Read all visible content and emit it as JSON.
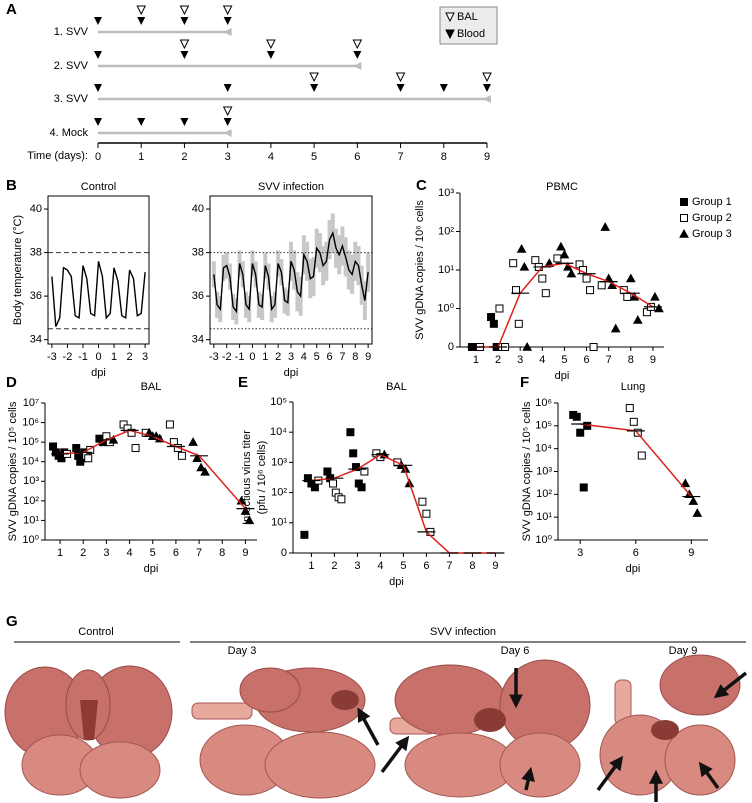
{
  "panel_labels": [
    "A",
    "B",
    "C",
    "D",
    "E",
    "F",
    "G"
  ],
  "photos": {
    "control_heading": "Control",
    "infection_heading": "SVV infection",
    "days": [
      "Day 3",
      "Day 6",
      "Day 9"
    ]
  },
  "chart_data": [
    {
      "type": "timeline",
      "xlabel": "Time (days):",
      "xlim": [
        0,
        9
      ],
      "xticks": [
        0,
        1,
        2,
        3,
        4,
        5,
        6,
        7,
        8,
        9
      ],
      "markers": [
        {
          "name": "BAL",
          "style": "open"
        },
        {
          "name": "Blood",
          "style": "filled"
        }
      ],
      "rows": [
        {
          "name": "1. SVV",
          "end": 3,
          "bal": [
            1,
            2,
            3
          ],
          "blood": [
            0,
            1,
            2,
            3
          ]
        },
        {
          "name": "2. SVV",
          "end": 6,
          "bal": [
            2,
            4,
            6
          ],
          "blood": [
            0,
            2,
            4,
            6
          ]
        },
        {
          "name": "3. SVV",
          "end": 9,
          "bal": [
            5,
            7,
            9
          ],
          "blood": [
            0,
            3,
            5,
            7,
            8,
            9
          ]
        },
        {
          "name": "4. Mock",
          "end": 3,
          "bal": [
            3
          ],
          "blood": [
            0,
            1,
            2,
            3
          ]
        }
      ]
    },
    {
      "type": "line",
      "title": "Control",
      "ylabel": "Body temperature (°C)",
      "xlabel": "dpi",
      "color": "#000000",
      "xlim": [
        -3.25,
        3.25
      ],
      "xticks": [
        -3,
        -2,
        -1,
        0,
        1,
        2,
        3
      ],
      "ylim": [
        33.8,
        40.6
      ],
      "yticks": [
        34,
        36,
        38,
        40
      ],
      "hlines": [
        38,
        34.5
      ],
      "hline_style": "dashed",
      "x": [
        -3,
        -2.75,
        -2.5,
        -2.25,
        -2,
        -1.75,
        -1.5,
        -1.25,
        -1,
        -0.75,
        -0.5,
        -0.25,
        0,
        0.25,
        0.5,
        0.75,
        1,
        1.25,
        1.5,
        1.75,
        2,
        2.25,
        2.5,
        2.75,
        3
      ],
      "values": [
        36.9,
        34.6,
        35.0,
        37.3,
        37.2,
        36.9,
        35.1,
        35.0,
        37.4,
        36.8,
        35.2,
        35.1,
        37.6,
        36.9,
        35.0,
        35.2,
        37.3,
        36.7,
        35.1,
        35.0,
        37.2,
        36.8,
        35.1,
        35.2,
        37.1
      ]
    },
    {
      "type": "line",
      "title": "SVV infection",
      "xlabel": "dpi",
      "color": "#000000",
      "band_color": "#c8c8c8",
      "xlim": [
        -3.3,
        9.3
      ],
      "xticks": [
        -3,
        -2,
        -1,
        0,
        1,
        2,
        3,
        4,
        5,
        6,
        7,
        8,
        9
      ],
      "ylim": [
        33.8,
        40.6
      ],
      "yticks": [
        34,
        36,
        38,
        40
      ],
      "hlines": [
        38,
        34.5
      ],
      "hline_style": "dotted",
      "x": [
        -3,
        -2.75,
        -2.5,
        -2.25,
        -2,
        -1.75,
        -1.5,
        -1.25,
        -1,
        -0.75,
        -0.5,
        -0.25,
        0,
        0.25,
        0.5,
        0.75,
        1,
        1.25,
        1.5,
        1.75,
        2,
        2.25,
        2.5,
        2.75,
        3,
        3.25,
        3.5,
        3.75,
        4,
        4.25,
        4.5,
        4.75,
        5,
        5.25,
        5.5,
        5.75,
        6,
        6.25,
        6.5,
        6.75,
        7,
        7.25,
        7.5,
        7.75,
        8,
        8.25,
        8.5,
        8.75,
        9
      ],
      "values": [
        37.0,
        35.6,
        35.4,
        37.3,
        37.4,
        36.9,
        35.5,
        35.3,
        37.5,
        37.0,
        35.6,
        35.4,
        37.5,
        37.0,
        35.6,
        35.5,
        37.4,
        36.9,
        35.4,
        35.6,
        37.5,
        37.1,
        35.8,
        35.7,
        37.6,
        37.2,
        36.2,
        36.0,
        37.9,
        37.6,
        36.8,
        36.9,
        38.2,
        38.0,
        37.4,
        37.6,
        38.6,
        38.9,
        38.2,
        37.9,
        38.3,
        37.8,
        37.2,
        37.0,
        37.6,
        37.4,
        36.5,
        35.8,
        37.1
      ],
      "band_lower": [
        36.4,
        35.0,
        34.8,
        36.7,
        36.8,
        36.3,
        34.9,
        34.7,
        36.9,
        36.4,
        35.0,
        34.8,
        36.9,
        36.4,
        35.0,
        34.9,
        36.8,
        36.3,
        34.8,
        35.0,
        36.9,
        36.5,
        35.2,
        35.1,
        36.7,
        36.3,
        35.3,
        35.1,
        37.0,
        36.7,
        35.9,
        36.0,
        37.3,
        37.1,
        36.5,
        36.7,
        37.7,
        38.0,
        37.3,
        37.0,
        37.4,
        36.9,
        36.3,
        36.1,
        36.7,
        36.5,
        35.6,
        34.9,
        36.2
      ],
      "band_upper": [
        37.6,
        36.2,
        36.0,
        37.9,
        38.0,
        37.5,
        36.1,
        35.9,
        38.1,
        37.6,
        36.2,
        36.0,
        38.1,
        37.6,
        36.2,
        36.1,
        38.0,
        37.5,
        36.0,
        36.2,
        38.1,
        37.7,
        36.4,
        36.3,
        38.5,
        38.1,
        37.1,
        36.9,
        38.8,
        38.5,
        37.7,
        37.8,
        39.1,
        38.9,
        38.3,
        38.5,
        39.5,
        39.8,
        39.1,
        38.8,
        39.2,
        38.7,
        38.1,
        37.9,
        38.5,
        38.3,
        37.4,
        36.7,
        38.0
      ]
    },
    {
      "type": "scatter",
      "title": "PBMC",
      "ylabel": "SVV gDNA copies / 10⁶ cells",
      "xlabel": "dpi",
      "log_y": true,
      "xlim": [
        0.28,
        9.5
      ],
      "xticks": [
        1,
        2,
        3,
        4,
        5,
        6,
        7,
        8,
        9
      ],
      "ylim": [
        0,
        1000
      ],
      "yticks": [
        0,
        {
          "value": 1,
          "label": "10⁰"
        },
        {
          "value": 10,
          "label": "10¹"
        },
        {
          "value": 100,
          "label": "10²"
        },
        {
          "value": 1000,
          "label": "10³"
        }
      ],
      "legend": "outside-right",
      "series": [
        {
          "name": "Group 1",
          "marker": "square-filled",
          "color": "#000000",
          "x": [
            1,
            1,
            2,
            2,
            2
          ],
          "y": [
            0,
            0,
            0.6,
            0.4,
            0
          ]
        },
        {
          "name": "Group 2",
          "marker": "square-open",
          "color": "#000000",
          "x": [
            1,
            2,
            2,
            2,
            3,
            3,
            3,
            4,
            4,
            4,
            4,
            5,
            6,
            6,
            6,
            6,
            6,
            7,
            8,
            8,
            9,
            9
          ],
          "y": [
            0,
            1.0,
            0,
            0,
            15,
            3,
            0.4,
            18,
            12,
            6,
            2.5,
            20,
            14,
            10,
            6,
            3,
            0,
            4,
            3,
            2,
            0.8,
            1.1
          ]
        },
        {
          "name": "Group 3",
          "marker": "triangle-filled",
          "color": "#000000",
          "x": [
            3,
            3,
            3,
            4,
            5,
            5,
            5,
            5,
            7,
            7,
            7,
            7,
            8,
            8,
            8,
            9,
            9
          ],
          "y": [
            35,
            12,
            0,
            15,
            40,
            25,
            12,
            8,
            130,
            6,
            4,
            0.3,
            6,
            2,
            0.5,
            2,
            1
          ]
        }
      ],
      "median": {
        "color": "#e0201b",
        "x": [
          1,
          2,
          3,
          4,
          5,
          6,
          7,
          8,
          9
        ],
        "y": [
          0,
          0,
          2.5,
          12,
          15,
          8,
          5,
          2.5,
          1.1
        ]
      }
    },
    {
      "type": "scatter",
      "title": "BAL",
      "ylabel": "SVV gDNA copies / 10⁵ cells",
      "xlabel": "dpi",
      "log_y": true,
      "xlim": [
        0.35,
        9.5
      ],
      "xticks": [
        1,
        2,
        3,
        4,
        5,
        6,
        7,
        8,
        9
      ],
      "ylim": [
        1,
        10000000
      ],
      "yticks": [
        {
          "value": 1,
          "label": "10⁰"
        },
        {
          "value": 10,
          "label": "10¹"
        },
        {
          "value": 100,
          "label": "10²"
        },
        {
          "value": 1000,
          "label": "10³"
        },
        {
          "value": 10000,
          "label": "10⁴"
        },
        {
          "value": 100000,
          "label": "10⁵"
        },
        {
          "value": 1000000,
          "label": "10⁶"
        },
        {
          "value": 10000000,
          "label": "10⁷"
        }
      ],
      "series": [
        {
          "marker": "square-filled",
          "color": "#000000",
          "x": [
            1,
            1,
            1,
            1,
            1,
            2,
            2,
            2,
            2,
            2,
            3,
            3
          ],
          "y": [
            60000,
            30000,
            20000,
            15000,
            30000,
            50000,
            20000,
            10000,
            15000,
            30000,
            150000,
            100000
          ]
        },
        {
          "marker": "square-open",
          "color": "#000000",
          "x": [
            1,
            2,
            2,
            2,
            3,
            3,
            4,
            4,
            4,
            4,
            5,
            6,
            6,
            6,
            6
          ],
          "y": [
            25000,
            20000,
            15000,
            40000,
            200000,
            100000,
            800000,
            500000,
            300000,
            50000,
            300000,
            800000,
            100000,
            50000,
            20000
          ]
        },
        {
          "marker": "triangle-filled",
          "color": "#000000",
          "x": [
            3,
            5,
            5,
            5,
            5,
            7,
            7,
            7,
            7,
            9,
            9,
            9
          ],
          "y": [
            130000,
            300000,
            200000,
            200000,
            150000,
            100000,
            15000,
            5000,
            3000,
            100,
            30,
            10
          ]
        }
      ],
      "median": {
        "color": "#e0201b",
        "x": [
          1,
          2,
          3,
          4,
          5,
          6,
          7,
          9
        ],
        "y": [
          25000,
          30000,
          130000,
          400000,
          200000,
          60000,
          20000,
          40
        ]
      }
    },
    {
      "type": "scatter",
      "title": "BAL",
      "ylabel": [
        "Infectious virus titer",
        "(pfu / 10⁶ cells)"
      ],
      "xlabel": "dpi",
      "log_y": true,
      "xlim": [
        0.2,
        9.2
      ],
      "xticks": [
        1,
        2,
        3,
        4,
        5,
        6,
        7,
        8,
        9
      ],
      "ylim": [
        0,
        100000
      ],
      "yticks": [
        0,
        {
          "value": 10,
          "label": "10¹"
        },
        {
          "value": 100,
          "label": "10²"
        },
        {
          "value": 1000,
          "label": "10³"
        },
        {
          "value": 10000,
          "label": "10⁴"
        },
        {
          "value": 100000,
          "label": "10⁵"
        }
      ],
      "series": [
        {
          "marker": "square-filled",
          "color": "#000000",
          "x": [
            1,
            1,
            1,
            1,
            2,
            2,
            3,
            3,
            3,
            3,
            3
          ],
          "y": [
            4,
            300,
            200,
            150,
            500,
            300,
            10000,
            2000,
            700,
            200,
            150
          ]
        },
        {
          "marker": "square-open",
          "color": "#000000",
          "x": [
            1,
            2,
            2,
            2,
            2,
            3,
            4,
            4,
            5,
            6,
            6,
            6
          ],
          "y": [
            250,
            200,
            100,
            70,
            60,
            500,
            2000,
            1500,
            1000,
            50,
            20,
            5
          ]
        },
        {
          "marker": "triangle-filled",
          "color": "#000000",
          "x": [
            4,
            5,
            5,
            5
          ],
          "y": [
            1800,
            800,
            600,
            200
          ]
        }
      ],
      "median": {
        "color": "#e0201b",
        "x": [
          1,
          2,
          3,
          4,
          5,
          6,
          7,
          8,
          9
        ],
        "y": [
          250,
          300,
          600,
          1800,
          800,
          5,
          0,
          0,
          0
        ]
      }
    },
    {
      "type": "scatter",
      "title": "Lung",
      "ylabel": "SVV gDNA copies / 10⁵ cells",
      "xlabel": "dpi",
      "log_y": true,
      "xlim": [
        1.8,
        9.9
      ],
      "xticks": [
        3,
        6,
        9
      ],
      "ylim": [
        1,
        1000000
      ],
      "yticks": [
        {
          "value": 1,
          "label": "10⁰"
        },
        {
          "value": 10,
          "label": "10¹"
        },
        {
          "value": 100,
          "label": "10²"
        },
        {
          "value": 1000,
          "label": "10³"
        },
        {
          "value": 10000,
          "label": "10⁴"
        },
        {
          "value": 100000,
          "label": "10⁵"
        },
        {
          "value": 1000000,
          "label": "10⁶"
        }
      ],
      "series": [
        {
          "marker": "square-filled",
          "color": "#000000",
          "x": [
            3,
            3,
            3,
            3,
            3
          ],
          "y": [
            300000,
            250000,
            50000,
            200,
            100000
          ]
        },
        {
          "marker": "square-open",
          "color": "#000000",
          "x": [
            6,
            6,
            6,
            6
          ],
          "y": [
            600000,
            150000,
            50000,
            5000
          ]
        },
        {
          "marker": "triangle-filled",
          "color": "#000000",
          "x": [
            9,
            9,
            9,
            9
          ],
          "y": [
            300,
            100,
            50,
            15
          ]
        }
      ],
      "median": {
        "color": "#e0201b",
        "x": [
          3,
          6,
          9
        ],
        "y": [
          120000,
          60000,
          80
        ]
      }
    }
  ]
}
